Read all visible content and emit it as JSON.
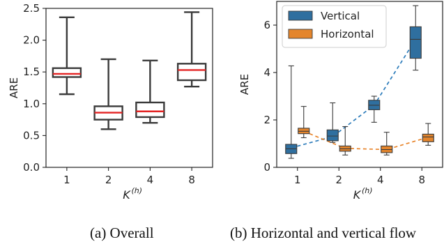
{
  "chart_data": [
    {
      "type": "box",
      "panel_id": "overall",
      "ylabel": "ARE",
      "xlabel_base": "K",
      "xlabel_sup": "(h)",
      "categories": [
        "1",
        "2",
        "4",
        "8"
      ],
      "ylim": [
        0.0,
        2.5
      ],
      "yticks": [
        0.0,
        0.5,
        1.0,
        1.5,
        2.0,
        2.5
      ],
      "ytick_labels": [
        "0.0",
        "0.5",
        "1.0",
        "1.5",
        "2.0",
        "2.5"
      ],
      "box_color": "#ffffff",
      "edge_color": "#3a3a3a",
      "median_color": "#e32323",
      "boxes": [
        {
          "whislo": 1.15,
          "q1": 1.42,
          "med": 1.47,
          "q3": 1.56,
          "whishi": 2.36
        },
        {
          "whislo": 0.6,
          "q1": 0.75,
          "med": 0.86,
          "q3": 0.96,
          "whishi": 1.7
        },
        {
          "whislo": 0.7,
          "q1": 0.79,
          "med": 0.88,
          "q3": 1.02,
          "whishi": 1.68
        },
        {
          "whislo": 1.27,
          "q1": 1.37,
          "med": 1.53,
          "q3": 1.63,
          "whishi": 2.44
        }
      ]
    },
    {
      "type": "box",
      "panel_id": "flows",
      "ylabel": "ARE",
      "xlabel_base": "K",
      "xlabel_sup": "(h)",
      "categories": [
        "1",
        "2",
        "4",
        "8"
      ],
      "ylim": [
        0,
        7.0
      ],
      "yticks": [
        0,
        2,
        4,
        6
      ],
      "ytick_labels": [
        "0",
        "2",
        "4",
        "6"
      ],
      "legend_position": "top-left",
      "series": [
        {
          "name": "Vertical",
          "color": "#2f6f9f",
          "line_color": "#2b7bba",
          "boxes": [
            {
              "whislo": 0.38,
              "q1": 0.58,
              "med": 0.78,
              "q3": 0.97,
              "whishi": 4.28
            },
            {
              "whislo": 1.05,
              "q1": 1.12,
              "med": 1.32,
              "q3": 1.58,
              "whishi": 2.72
            },
            {
              "whislo": 1.9,
              "q1": 2.43,
              "med": 2.62,
              "q3": 2.83,
              "whishi": 3.0
            },
            {
              "whislo": 4.1,
              "q1": 4.6,
              "med": 5.4,
              "q3": 5.93,
              "whishi": 6.82
            }
          ],
          "trend": [
            0.82,
            1.3,
            2.62,
            5.4
          ]
        },
        {
          "name": "Horizontal",
          "color": "#e4852c",
          "line_color": "#e8842a",
          "boxes": [
            {
              "whislo": 1.25,
              "q1": 1.42,
              "med": 1.52,
              "q3": 1.65,
              "whishi": 2.57
            },
            {
              "whislo": 0.52,
              "q1": 0.68,
              "med": 0.78,
              "q3": 0.9,
              "whishi": 1.72
            },
            {
              "whislo": 0.52,
              "q1": 0.62,
              "med": 0.75,
              "q3": 0.9,
              "whishi": 1.48
            },
            {
              "whislo": 0.93,
              "q1": 1.08,
              "med": 1.28,
              "q3": 1.4,
              "whishi": 1.85
            }
          ],
          "trend": [
            1.52,
            0.8,
            0.75,
            1.27
          ]
        }
      ]
    }
  ],
  "captions": {
    "a": "(a) Overall",
    "b": "(b) Horizontal and vertical flow"
  }
}
